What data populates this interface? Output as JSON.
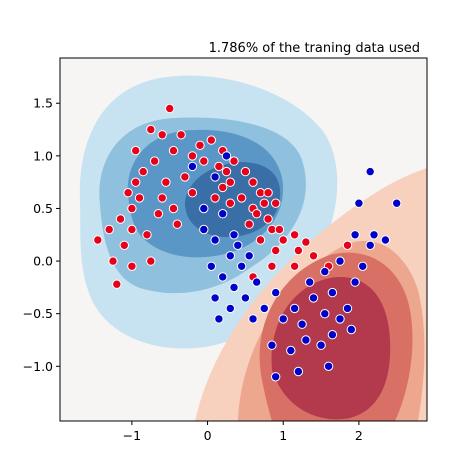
{
  "chart_data": {
    "type": "scatter",
    "title": "1.786% of the traning data used",
    "xlim": [
      -1.95,
      2.9
    ],
    "ylim": [
      -1.52,
      1.93
    ],
    "xticks": [
      -1,
      0,
      1,
      2
    ],
    "xtick_labels": [
      "−1",
      "0",
      "1",
      "2"
    ],
    "yticks": [
      -1.0,
      -0.5,
      0.0,
      0.5,
      1.0,
      1.5
    ],
    "ytick_labels": [
      "−1.0",
      "−0.5",
      "0.0",
      "0.5",
      "1.0",
      "1.5"
    ],
    "grid": false,
    "colors": {
      "red_points": "#e8001b",
      "blue_points": "#0000c8",
      "blue_contours": [
        "#c7e2f0",
        "#8fc0dd",
        "#5a97c6",
        "#3a6ea6"
      ],
      "red_contours": [
        "#f7d1bd",
        "#eca78e",
        "#d87065",
        "#b23a4c"
      ],
      "background": "#f7f4f4"
    },
    "series": [
      {
        "color": "red",
        "points": [
          [
            -0.5,
            1.45
          ],
          [
            -0.6,
            1.2
          ],
          [
            -0.95,
            1.05
          ],
          [
            -0.7,
            0.95
          ],
          [
            -0.85,
            0.85
          ],
          [
            -0.95,
            0.75
          ],
          [
            -1.05,
            0.65
          ],
          [
            -0.9,
            0.6
          ],
          [
            -1.0,
            0.5
          ],
          [
            -1.15,
            0.4
          ],
          [
            -1.3,
            0.3
          ],
          [
            -1.0,
            0.3
          ],
          [
            -0.8,
            0.25
          ],
          [
            -1.1,
            0.15
          ],
          [
            -1.45,
            0.2
          ],
          [
            -1.25,
            0.0
          ],
          [
            -1.0,
            -0.05
          ],
          [
            -0.75,
            0.0
          ],
          [
            -1.2,
            -0.22
          ],
          [
            -0.6,
            0.6
          ],
          [
            -0.45,
            0.5
          ],
          [
            -0.3,
            0.8
          ],
          [
            -0.2,
            1.0
          ],
          [
            -0.1,
            1.1
          ],
          [
            0.05,
            1.15
          ],
          [
            0.2,
            1.05
          ],
          [
            0.35,
            0.95
          ],
          [
            0.5,
            0.85
          ],
          [
            0.6,
            0.75
          ],
          [
            0.7,
            0.65
          ],
          [
            0.75,
            0.55
          ],
          [
            0.8,
            0.4
          ],
          [
            0.85,
            0.3
          ],
          [
            0.7,
            0.2
          ],
          [
            0.9,
            0.1
          ],
          [
            1.0,
            0.2
          ],
          [
            0.2,
            0.7
          ],
          [
            0.1,
            0.6
          ],
          [
            0.3,
            0.55
          ],
          [
            0.45,
            0.6
          ],
          [
            0.6,
            0.5
          ],
          [
            0.55,
            0.35
          ],
          [
            0.95,
            0.3
          ],
          [
            -0.35,
            1.2
          ],
          [
            -0.05,
            0.95
          ],
          [
            0.15,
            0.9
          ],
          [
            0.3,
            0.75
          ],
          [
            0.65,
            0.45
          ],
          [
            -0.55,
            0.75
          ],
          [
            -0.65,
            0.45
          ],
          [
            -0.4,
            0.35
          ],
          [
            -0.2,
            0.65
          ],
          [
            0.25,
            0.85
          ],
          [
            0.8,
            0.65
          ],
          [
            0.9,
            0.55
          ],
          [
            1.15,
            0.25
          ],
          [
            1.2,
            0.1
          ],
          [
            1.3,
            0.18
          ],
          [
            1.4,
            0.05
          ],
          [
            1.6,
            -0.05
          ],
          [
            1.85,
            0.15
          ],
          [
            1.15,
            -0.05
          ],
          [
            0.6,
            -0.15
          ],
          [
            0.85,
            -0.05
          ],
          [
            -0.75,
            1.25
          ],
          [
            -0.45,
            1.05
          ]
        ]
      },
      {
        "color": "blue",
        "points": [
          [
            -0.2,
            0.9
          ],
          [
            0.1,
            0.8
          ],
          [
            0.25,
            1.0
          ],
          [
            -0.05,
            0.5
          ],
          [
            0.2,
            0.45
          ],
          [
            0.35,
            0.25
          ],
          [
            0.1,
            0.2
          ],
          [
            -0.05,
            0.3
          ],
          [
            0.3,
            0.05
          ],
          [
            0.45,
            -0.05
          ],
          [
            0.2,
            -0.15
          ],
          [
            0.35,
            -0.25
          ],
          [
            0.5,
            -0.35
          ],
          [
            0.3,
            -0.45
          ],
          [
            0.15,
            -0.55
          ],
          [
            0.6,
            -0.55
          ],
          [
            0.75,
            -0.45
          ],
          [
            0.9,
            -0.3
          ],
          [
            1.0,
            -0.55
          ],
          [
            1.15,
            -0.45
          ],
          [
            1.25,
            -0.6
          ],
          [
            1.4,
            -0.35
          ],
          [
            1.55,
            -0.5
          ],
          [
            1.65,
            -0.3
          ],
          [
            1.75,
            -0.55
          ],
          [
            1.85,
            -0.45
          ],
          [
            1.9,
            -0.65
          ],
          [
            1.65,
            -0.7
          ],
          [
            1.5,
            -0.8
          ],
          [
            1.3,
            -0.75
          ],
          [
            1.1,
            -0.85
          ],
          [
            0.85,
            -0.8
          ],
          [
            0.9,
            -1.1
          ],
          [
            1.2,
            -1.05
          ],
          [
            1.6,
            -1.0
          ],
          [
            1.35,
            -0.2
          ],
          [
            1.55,
            -0.1
          ],
          [
            1.75,
            0.0
          ],
          [
            1.95,
            0.25
          ],
          [
            2.15,
            0.15
          ],
          [
            2.2,
            0.25
          ],
          [
            2.35,
            0.2
          ],
          [
            2.0,
            0.55
          ],
          [
            2.5,
            0.55
          ],
          [
            2.15,
            0.85
          ],
          [
            1.95,
            -0.2
          ],
          [
            2.05,
            -0.05
          ],
          [
            0.55,
            0.05
          ],
          [
            0.65,
            -0.2
          ],
          [
            0.05,
            -0.05
          ],
          [
            0.4,
            0.15
          ],
          [
            0.1,
            -0.35
          ]
        ]
      }
    ]
  }
}
